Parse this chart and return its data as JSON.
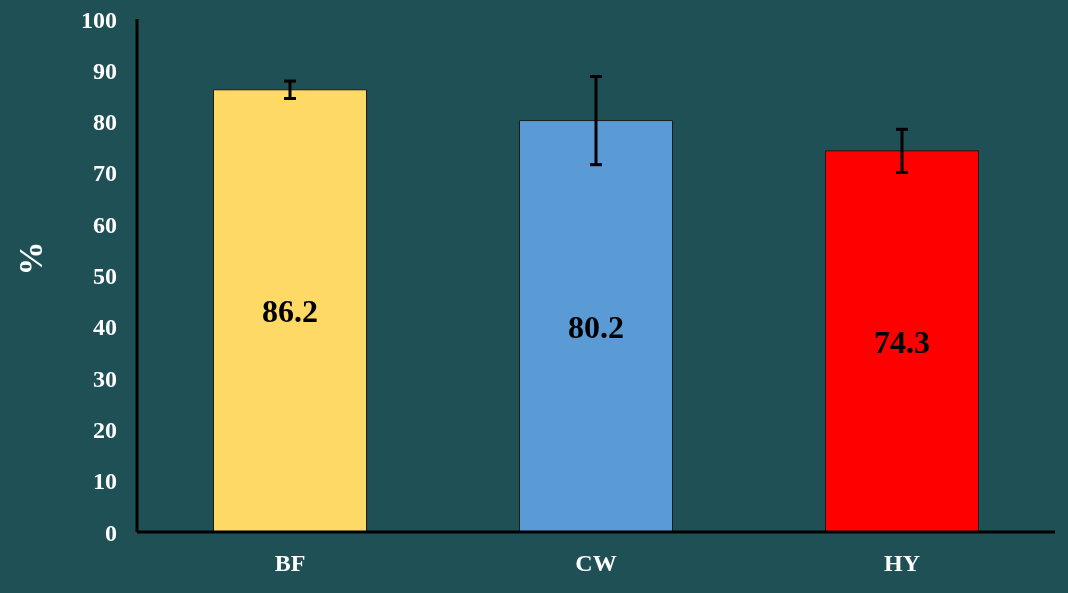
{
  "chart_data": {
    "type": "bar",
    "ylabel": "%",
    "categories": [
      "BF",
      "CW",
      "HY"
    ],
    "values": [
      86.2,
      80.2,
      74.3
    ],
    "colors": [
      "#ffd966",
      "#5b9bd5",
      "#ff0000"
    ],
    "errors": [
      1.7,
      8.6,
      4.2
    ],
    "data_labels": true,
    "ylim": [
      0,
      100
    ],
    "yticks": [
      0,
      10,
      20,
      30,
      40,
      50,
      60,
      70,
      80,
      90,
      100
    ],
    "grid": false,
    "legend": false
  }
}
